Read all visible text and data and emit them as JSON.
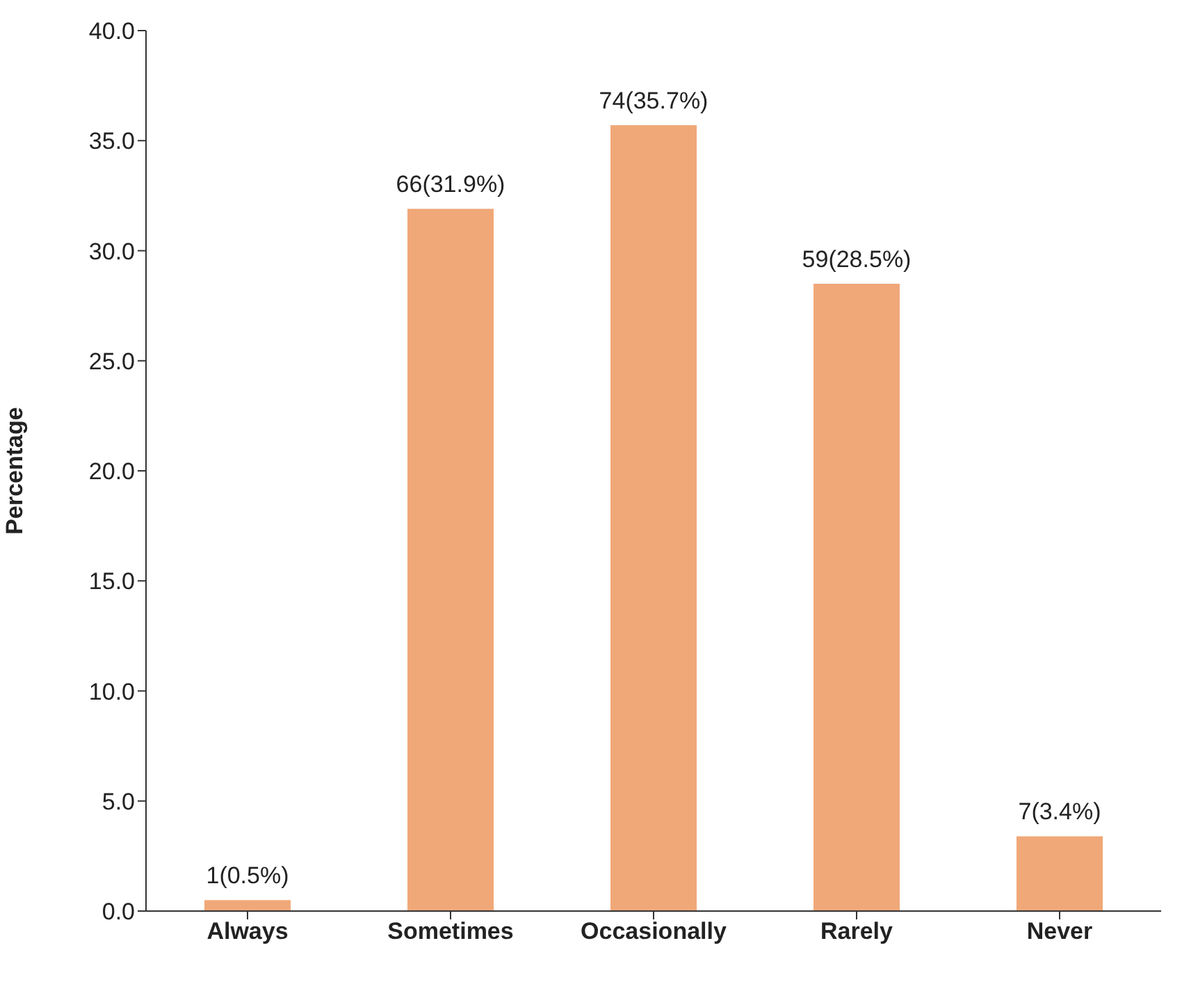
{
  "chart_data": {
    "type": "bar",
    "ylabel": "Percentage",
    "categories": [
      "Always",
      "Sometimes",
      "Occasionally",
      "Rarely",
      "Never"
    ],
    "values": [
      0.5,
      31.9,
      35.7,
      28.5,
      3.4
    ],
    "value_labels": [
      "1(0.5%)",
      "66(31.9%)",
      "74(35.7%)",
      "59(28.5%)",
      "7(3.4%)"
    ],
    "color": "#f0a878",
    "ylim": [
      0,
      40
    ],
    "yticks": [
      {
        "value": 0,
        "label": "0.0"
      },
      {
        "value": 5,
        "label": "5.0"
      },
      {
        "value": 10,
        "label": "10.0"
      },
      {
        "value": 15,
        "label": "15.0"
      },
      {
        "value": 20,
        "label": "20.0"
      },
      {
        "value": 25,
        "label": "25.0"
      },
      {
        "value": 30,
        "label": "30.0"
      },
      {
        "value": 35,
        "label": "35.0"
      },
      {
        "value": 40,
        "label": "40.0"
      }
    ],
    "grid": false,
    "legend": false
  }
}
